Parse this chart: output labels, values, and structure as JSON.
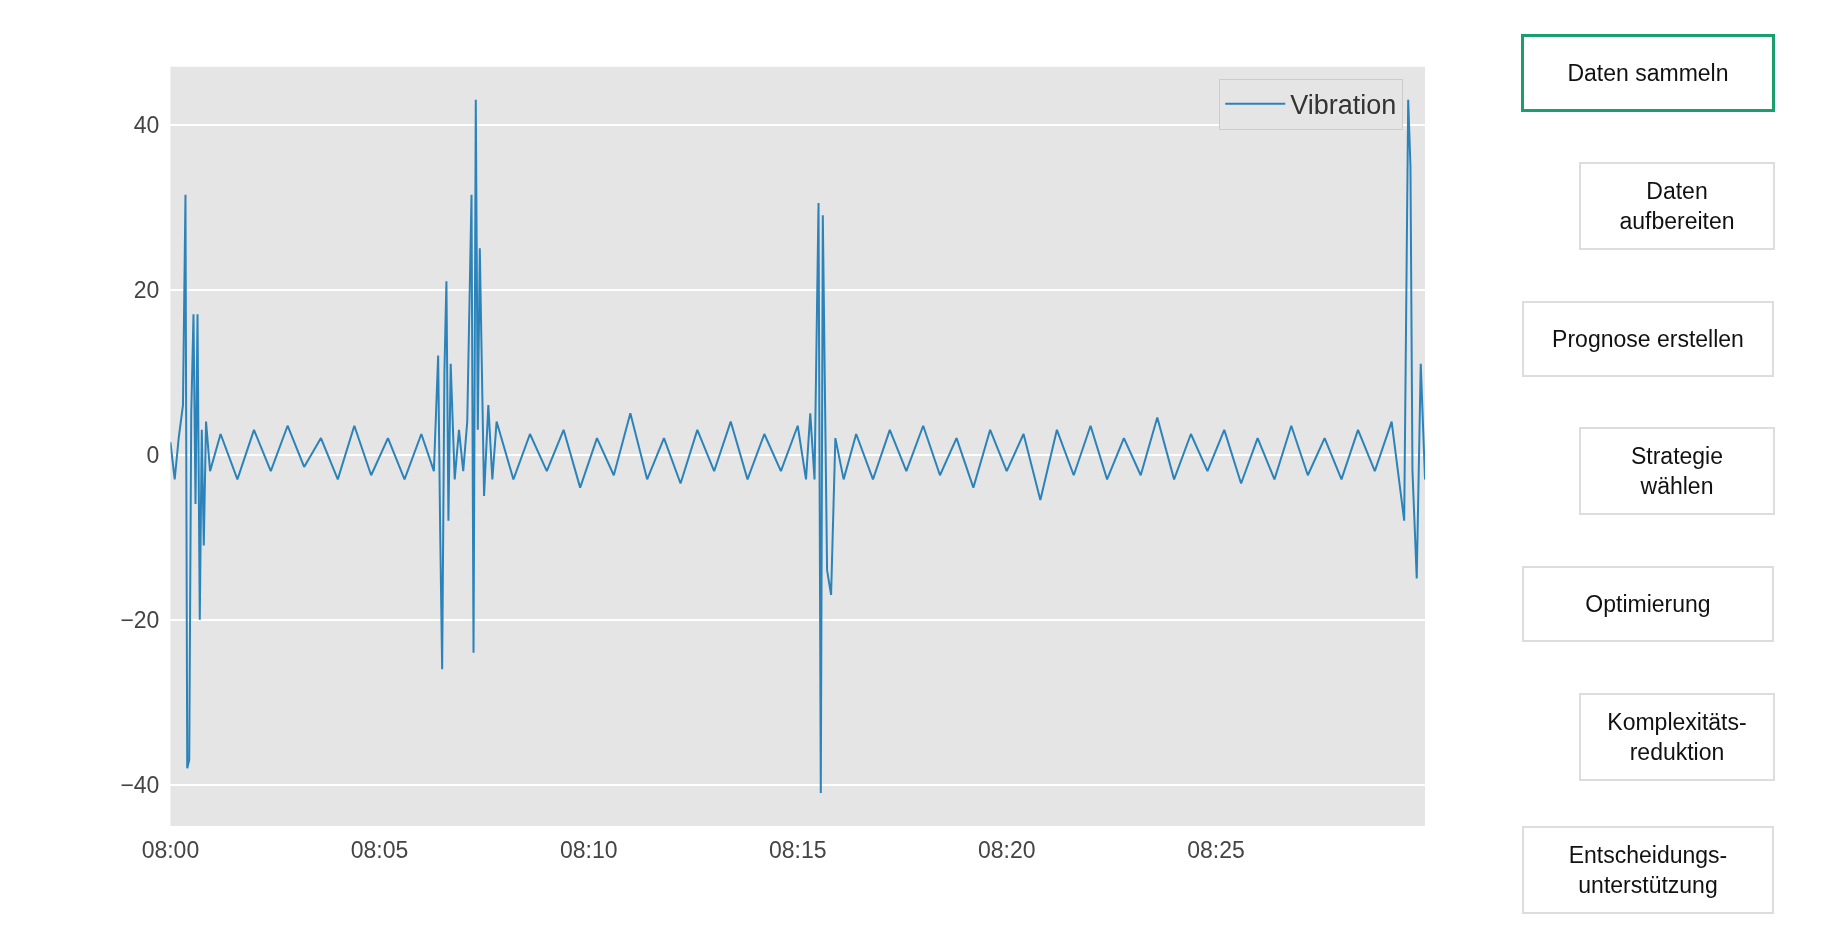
{
  "chart_data": [
    {
      "type": "line",
      "legend": "top right",
      "grid": "y",
      "x": [
        8.0,
        8.0017,
        8.0033,
        8.005,
        8.006,
        8.0067,
        8.0075,
        8.0083,
        8.0092,
        8.01,
        8.0108,
        8.0117,
        8.0125,
        8.0133,
        8.0142,
        8.0158,
        8.02,
        8.0267,
        8.0333,
        8.04,
        8.0467,
        8.0533,
        8.06,
        8.0667,
        8.0733,
        8.08,
        8.0867,
        8.0933,
        8.1,
        8.105,
        8.1067,
        8.1075,
        8.1083,
        8.1092,
        8.11,
        8.1108,
        8.1117,
        8.1133,
        8.115,
        8.1167,
        8.1183,
        8.12,
        8.1208,
        8.1217,
        8.1225,
        8.1233,
        8.125,
        8.1267,
        8.1283,
        8.13,
        8.1367,
        8.1433,
        8.15,
        8.1567,
        8.1633,
        8.17,
        8.1767,
        8.1833,
        8.19,
        8.1967,
        8.2033,
        8.21,
        8.2167,
        8.2233,
        8.23,
        8.2367,
        8.2433,
        8.25,
        8.2533,
        8.255,
        8.2567,
        8.2583,
        8.2592,
        8.26,
        8.2617,
        8.2633,
        8.265,
        8.2683,
        8.2733,
        8.28,
        8.2867,
        8.2933,
        8.3,
        8.3067,
        8.3133,
        8.32,
        8.3267,
        8.3333,
        8.34,
        8.3467,
        8.3533,
        8.36,
        8.3667,
        8.3733,
        8.38,
        8.3867,
        8.3933,
        8.4,
        8.4067,
        8.4133,
        8.42,
        8.4267,
        8.4333,
        8.44,
        8.4467,
        8.4533,
        8.46,
        8.4667,
        8.4733,
        8.48,
        8.4867,
        8.4917,
        8.4933,
        8.4942,
        8.495,
        8.4967,
        8.4983,
        8.5
      ],
      "series": [
        {
          "name": "Vibration",
          "color": "#2b83ba",
          "values": [
            1.5,
            -3,
            2,
            6,
            31.5,
            -38,
            -37,
            5,
            17,
            -6,
            17,
            -20,
            3,
            -11,
            4,
            -2,
            2.5,
            -3,
            3,
            -2,
            3.5,
            -1.5,
            2,
            -3,
            3.5,
            -2.5,
            2,
            -3,
            2.5,
            -2,
            12,
            -9,
            -26,
            10,
            21,
            -8,
            11,
            -3,
            3,
            -2,
            4,
            31.5,
            -24,
            43,
            3,
            25,
            -5,
            6,
            -3,
            4,
            -3,
            2.5,
            -2,
            3,
            -4,
            2,
            -2.5,
            5,
            -3,
            2,
            -3.5,
            3,
            -2,
            4,
            -3,
            2.5,
            -2,
            3.5,
            -3,
            5,
            -3,
            30.5,
            -41,
            29,
            -14,
            -17,
            2,
            -3,
            2.5,
            -3,
            3,
            -2,
            3.5,
            -2.5,
            2,
            -4,
            3,
            -2,
            2.5,
            -5.5,
            3,
            -2.5,
            3.5,
            -3,
            2,
            -2.5,
            4.5,
            -3,
            2.5,
            -2,
            3,
            -3.5,
            2,
            -3,
            3.5,
            -2.5,
            2,
            -3,
            3,
            -2,
            4,
            -8,
            43,
            35,
            -2,
            -15,
            11,
            -3
          ]
        }
      ],
      "xlim": [
        8.0,
        8.5
      ],
      "xticks": [
        {
          "value": 8.0,
          "label": "08:00"
        },
        {
          "value": 8.0833,
          "label": "08:05"
        },
        {
          "value": 8.1667,
          "label": "08:10"
        },
        {
          "value": 8.25,
          "label": "08:15"
        },
        {
          "value": 8.3333,
          "label": "08:20"
        },
        {
          "value": 8.4167,
          "label": "08:25"
        }
      ],
      "ylim": [
        -45,
        47
      ],
      "yticks": [
        -40,
        -20,
        0,
        20,
        40
      ]
    },
    {
      "type": "other",
      "annotations": [
        "Daten sammeln",
        "Daten\naufbereiten",
        "Prognose erstellen",
        "Strategie\nwählen",
        "Optimierung",
        "Komplexitäts-\nreduktion",
        "Entscheidungs-\nunterstützung"
      ],
      "colors": [
        "#1a9e6e",
        "#dddddd",
        "#dddddd",
        "#dddddd",
        "#dddddd",
        "#dddddd",
        "#dddddd"
      ]
    }
  ]
}
